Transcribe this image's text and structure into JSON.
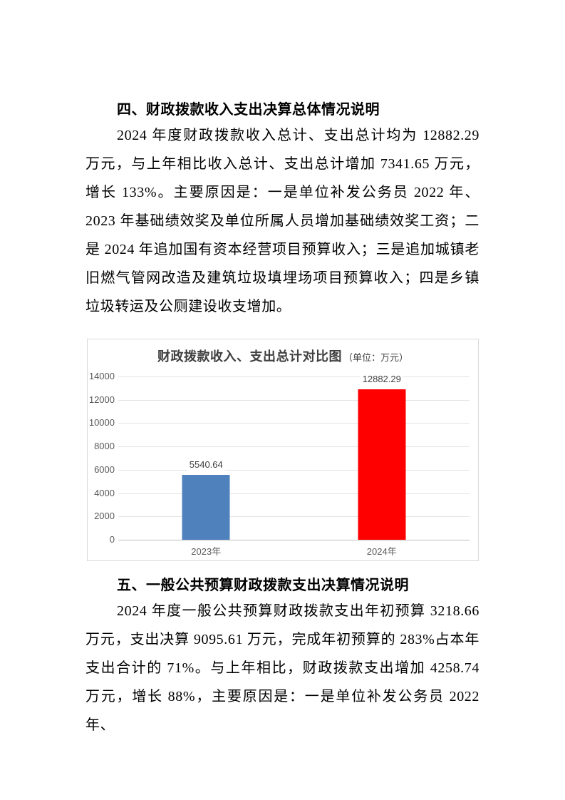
{
  "document": {
    "section_overall": {
      "heading": "四、财政拨款收入支出决算总体情况说明",
      "paragraph": "2024 年度财政拨款收入总计、支出总计均为 12882.29 万元，与上年相比收入总计、支出总计增加 7341.65 万元，增长 133%。主要原因是：一是单位补发公务员 2022 年、2023 年基础绩效奖及单位所属人员增加基础绩效奖工资；二是 2024 年追加国有资本经营项目预算收入；三是追加城镇老旧燃气管网改造及建筑垃圾填埋场项目预算收入；四是乡镇垃圾转运及公厕建设收支增加。"
    },
    "section_general_budget": {
      "heading": "五、一般公共预算财政拨款支出决算情况说明",
      "paragraph": "2024 年度一般公共预算财政拨款支出年初预算 3218.66 万元，支出决算 9095.61 万元，完成年初预算的 283%占本年支出合计的 71%。与上年相比，财政拨款支出增加 4258.74 万元，增长 88%，主要原因是：一是单位补发公务员 2022 年、"
    }
  },
  "chart_data": {
    "type": "bar",
    "title": "财政拨款收入、支出总计对比图",
    "unit_label": "（单位：万元）",
    "categories": [
      "2023年",
      "2024年"
    ],
    "values": [
      5540.64,
      12882.29
    ],
    "value_labels": [
      "5540.64",
      "12882.29"
    ],
    "bar_colors": [
      "#4F81BD",
      "#FF0000"
    ],
    "ylim": [
      0,
      14000
    ],
    "yticks": [
      0,
      2000,
      4000,
      6000,
      8000,
      10000,
      12000,
      14000
    ],
    "grid": true,
    "legend_position": "none",
    "colors": {
      "grid_line": "#e4e4e4",
      "axis_line": "#bfbfbf",
      "tick_label": "#595959",
      "title": "#404040",
      "value_label": "#404040",
      "border": "#d9d9d9"
    }
  }
}
